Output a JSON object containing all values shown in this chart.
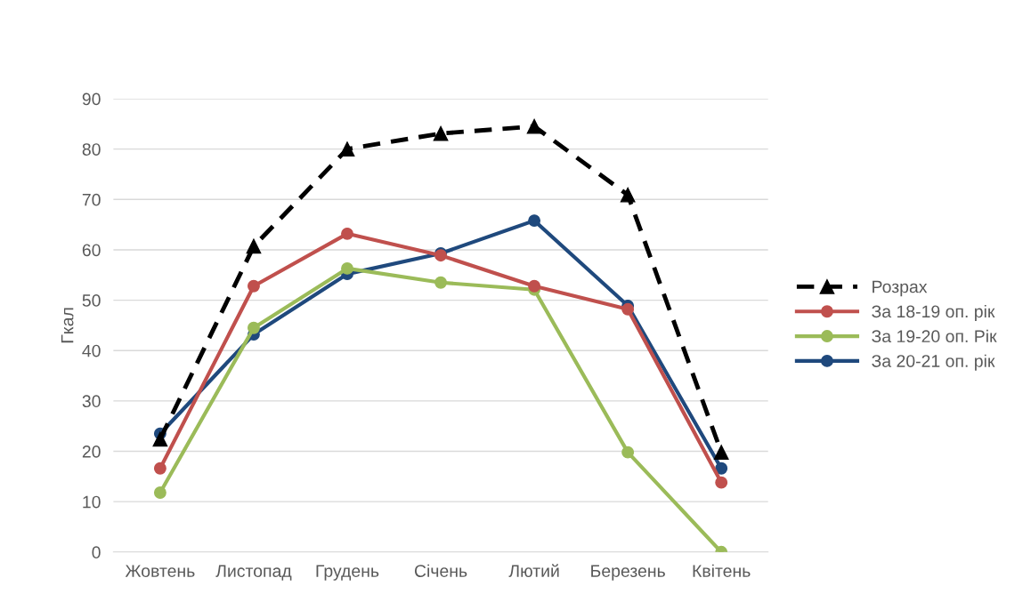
{
  "chart_data": {
    "type": "line",
    "ylabel": "Гкал",
    "categories": [
      "Жовтень",
      "Листопад",
      "Грудень",
      "Січень",
      "Лютий",
      "Березень",
      "Квітень"
    ],
    "ylim": [
      0,
      90
    ],
    "yticks": [
      0,
      10,
      20,
      30,
      40,
      50,
      60,
      70,
      80,
      90
    ],
    "grid": "y",
    "legend": "right",
    "series": [
      {
        "name": "Розрах",
        "color": "#000000",
        "marker": "triangle",
        "line_style": "dashed",
        "values": [
          22.4,
          60.7,
          80,
          83.1,
          84.5,
          70.9,
          19.8
        ]
      },
      {
        "name": "За 18-19 оп. рік",
        "color": "#c0504d",
        "marker": "circle",
        "line_style": "solid",
        "values": [
          16.6,
          52.8,
          63.2,
          58.9,
          52.8,
          48.2,
          13.8
        ]
      },
      {
        "name": "За 19-20 оп. Рік",
        "color": "#9bbb59",
        "marker": "circle",
        "line_style": "solid",
        "values": [
          11.8,
          44.5,
          56.3,
          53.5,
          52.1,
          19.8,
          0
        ]
      },
      {
        "name": "За 20-21 оп. рік",
        "color": "#1f497d",
        "marker": "circle",
        "line_style": "solid",
        "values": [
          23.5,
          43.2,
          55.2,
          59.3,
          65.8,
          48.9,
          16.6
        ]
      }
    ]
  }
}
